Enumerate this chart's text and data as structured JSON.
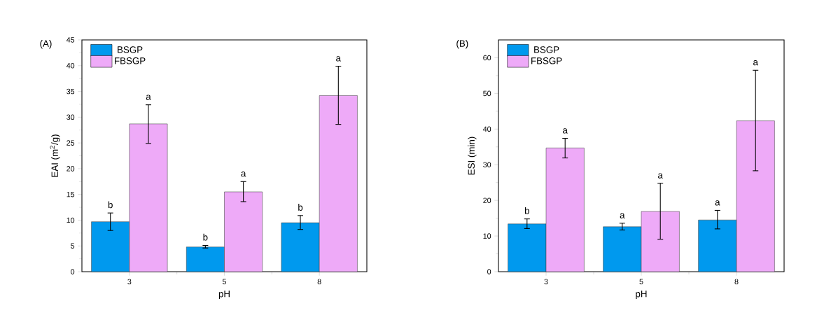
{
  "chart_data": [
    {
      "type": "bar",
      "title": "(A)",
      "xlabel": "pH",
      "ylabel": "EAI (m$^{2}$/g)",
      "categories": [
        "3",
        "5",
        "8"
      ],
      "series": [
        {
          "name": "BSGP",
          "color": "#0099ee",
          "values": [
            9.7,
            4.8,
            9.5
          ],
          "errors": [
            [
              8.0,
              11.4
            ],
            [
              4.6,
              5.1
            ],
            [
              8.2,
              10.9
            ]
          ]
        },
        {
          "name": "FBSGP",
          "color": "#eeaaf8",
          "values": [
            28.7,
            15.5,
            34.2
          ],
          "errors": [
            [
              24.9,
              32.4
            ],
            [
              13.6,
              17.5
            ],
            [
              28.6,
              39.9
            ]
          ]
        }
      ],
      "ylim": [
        0,
        45
      ],
      "yticks": [
        0,
        5,
        10,
        15,
        20,
        25,
        30,
        35,
        40,
        45
      ],
      "legend": "top left",
      "annotations": [
        "b",
        "a",
        "b",
        "a",
        "b",
        "a"
      ]
    },
    {
      "type": "bar",
      "title": "(B)",
      "xlabel": "pH",
      "ylabel": "ESI (min)",
      "categories": [
        "3",
        "5",
        "8"
      ],
      "series": [
        {
          "name": "BSGP",
          "color": "#0099ee",
          "values": [
            13.4,
            12.6,
            14.5
          ],
          "errors": [
            [
              12.1,
              14.8
            ],
            [
              11.7,
              13.6
            ],
            [
              12.0,
              17.2
            ]
          ]
        },
        {
          "name": "FBSGP",
          "color": "#eeaaf8",
          "values": [
            34.7,
            16.9,
            42.3
          ],
          "errors": [
            [
              31.9,
              37.4
            ],
            [
              9.1,
              24.8
            ],
            [
              28.3,
              56.5
            ]
          ]
        }
      ],
      "ylim": [
        0,
        65
      ],
      "yticks": [
        0,
        10,
        20,
        30,
        40,
        50,
        60
      ],
      "legend": "top left",
      "annotations": [
        "b",
        "a",
        "a",
        "a",
        "a",
        "a"
      ]
    }
  ]
}
